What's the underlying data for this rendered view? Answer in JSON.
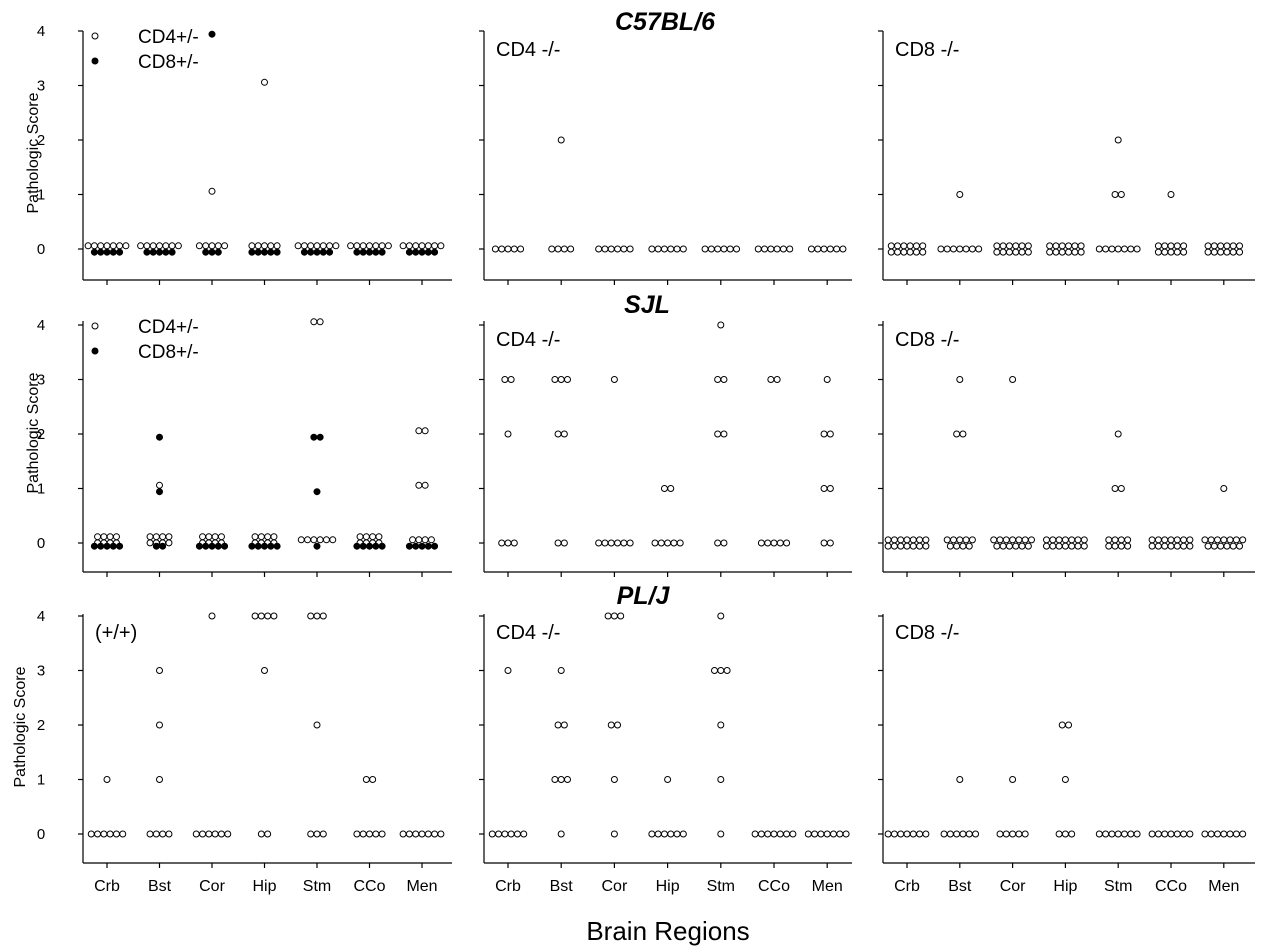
{
  "figure": {
    "x_axis_title": "Brain Regions",
    "y_axis_title": "Pathologic Score",
    "categories": [
      "Crb",
      "Bst",
      "Cor",
      "Hip",
      "Stm",
      "CCo",
      "Men"
    ],
    "y_ticks": [
      "0",
      "1",
      "2",
      "3",
      "4"
    ],
    "legend": [
      {
        "label": "CD4+/-",
        "marker": "open-circle"
      },
      {
        "label": "CD8+/-",
        "marker": "filled-circle"
      }
    ],
    "colors": {
      "ink": "#000000",
      "background": "#ffffff"
    }
  },
  "chart_data": [
    {
      "type": "scatter",
      "strain": "C57BL/6",
      "panel_label": "",
      "legend": true,
      "ylabel": "Pathologic Score",
      "xlabel": "",
      "ylim": [
        0,
        4
      ],
      "categories": [
        "Crb",
        "Bst",
        "Cor",
        "Hip",
        "Stm",
        "CCo",
        "Men"
      ],
      "series": [
        {
          "name": "CD4+/-",
          "marker": "open",
          "values": [
            [
              0,
              0,
              0,
              0,
              0,
              0,
              0
            ],
            [
              0,
              0,
              0,
              0,
              0,
              0,
              0
            ],
            [
              1,
              0,
              0,
              0,
              0,
              0
            ],
            [
              3,
              0,
              0,
              0,
              0,
              0
            ],
            [
              0,
              0,
              0,
              0,
              0,
              0,
              0
            ],
            [
              0,
              0,
              0,
              0,
              0,
              0,
              0
            ],
            [
              0,
              0,
              0,
              0,
              0,
              0,
              0
            ]
          ]
        },
        {
          "name": "CD8+/-",
          "marker": "filled",
          "values": [
            [
              0,
              0,
              0,
              0,
              0
            ],
            [
              0,
              0,
              0,
              0,
              0
            ],
            [
              4,
              0,
              0,
              0
            ],
            [
              0,
              0,
              0,
              0,
              0
            ],
            [
              0,
              0,
              0,
              0,
              0
            ],
            [
              0,
              0,
              0,
              0,
              0
            ],
            [
              0,
              0,
              0,
              0,
              0
            ]
          ]
        }
      ]
    },
    {
      "type": "scatter",
      "strain": "",
      "panel_label": "CD4 -/-",
      "legend": false,
      "ylabel": "",
      "xlabel": "",
      "ylim": [
        0,
        4
      ],
      "categories": [
        "Crb",
        "Bst",
        "Cor",
        "Hip",
        "Stm",
        "CCo",
        "Men"
      ],
      "series": [
        {
          "name": "CD4 -/-",
          "marker": "open",
          "values": [
            [
              0,
              0,
              0,
              0,
              0
            ],
            [
              2,
              0,
              0,
              0,
              0
            ],
            [
              0,
              0,
              0,
              0,
              0,
              0
            ],
            [
              0,
              0,
              0,
              0,
              0,
              0
            ],
            [
              0,
              0,
              0,
              0,
              0,
              0
            ],
            [
              0,
              0,
              0,
              0,
              0,
              0
            ],
            [
              0,
              0,
              0,
              0,
              0,
              0
            ]
          ]
        }
      ]
    },
    {
      "type": "scatter",
      "strain": "",
      "panel_label": "CD8 -/-",
      "legend": false,
      "ylabel": "",
      "xlabel": "",
      "ylim": [
        0,
        4
      ],
      "categories": [
        "Crb",
        "Bst",
        "Cor",
        "Hip",
        "Stm",
        "CCo",
        "Men"
      ],
      "series": [
        {
          "name": "CD8 -/-",
          "marker": "open",
          "values": [
            [
              0,
              0,
              0,
              0,
              0,
              0,
              0,
              0,
              0,
              0,
              0,
              0
            ],
            [
              1,
              0,
              0,
              0,
              0,
              0,
              0,
              0
            ],
            [
              0,
              0,
              0,
              0,
              0,
              0,
              0,
              0,
              0,
              0,
              0,
              0
            ],
            [
              0,
              0,
              0,
              0,
              0,
              0,
              0,
              0,
              0,
              0,
              0,
              0
            ],
            [
              2,
              1,
              1,
              0,
              0,
              0,
              0,
              0,
              0,
              0
            ],
            [
              1,
              0,
              0,
              0,
              0,
              0,
              0,
              0,
              0,
              0,
              0
            ],
            [
              0,
              0,
              0,
              0,
              0,
              0,
              0,
              0,
              0,
              0,
              0,
              0
            ]
          ]
        }
      ]
    },
    {
      "type": "scatter",
      "strain": "SJL",
      "panel_label": "",
      "legend": true,
      "ylabel": "Pathologic Score",
      "xlabel": "",
      "ylim": [
        0,
        4
      ],
      "categories": [
        "Crb",
        "Bst",
        "Cor",
        "Hip",
        "Stm",
        "CCo",
        "Men"
      ],
      "series": [
        {
          "name": "CD4+/-",
          "marker": "open",
          "values": [
            [
              0,
              0,
              0,
              0,
              0,
              0,
              0,
              0
            ],
            [
              1,
              0,
              0,
              0,
              0,
              0,
              0,
              0,
              0
            ],
            [
              0,
              0,
              0,
              0,
              0,
              0,
              0,
              0
            ],
            [
              0,
              0,
              0,
              0,
              0,
              0,
              0,
              0
            ],
            [
              4,
              4,
              0,
              0,
              0,
              0,
              0,
              0
            ],
            [
              0,
              0,
              0,
              0,
              0,
              0,
              0,
              0
            ],
            [
              2,
              2,
              1,
              1,
              0,
              0,
              0,
              0
            ]
          ]
        },
        {
          "name": "CD8+/-",
          "marker": "filled",
          "values": [
            [
              0,
              0,
              0,
              0,
              0
            ],
            [
              2,
              1,
              0,
              0
            ],
            [
              0,
              0,
              0,
              0,
              0
            ],
            [
              0,
              0,
              0,
              0,
              0
            ],
            [
              2,
              2,
              1,
              0
            ],
            [
              0,
              0,
              0,
              0,
              0
            ],
            [
              0,
              0,
              0,
              0,
              0
            ]
          ]
        }
      ]
    },
    {
      "type": "scatter",
      "strain": "",
      "panel_label": "CD4 -/-",
      "legend": false,
      "ylabel": "",
      "xlabel": "",
      "ylim": [
        0,
        4
      ],
      "categories": [
        "Crb",
        "Bst",
        "Cor",
        "Hip",
        "Stm",
        "CCo",
        "Men"
      ],
      "series": [
        {
          "name": "CD4 -/-",
          "marker": "open",
          "values": [
            [
              3,
              3,
              2,
              0,
              0,
              0
            ],
            [
              3,
              3,
              3,
              2,
              2,
              0,
              0
            ],
            [
              3,
              0,
              0,
              0,
              0,
              0,
              0
            ],
            [
              1,
              1,
              0,
              0,
              0,
              0,
              0
            ],
            [
              4,
              3,
              3,
              2,
              2,
              0,
              0
            ],
            [
              3,
              3,
              0,
              0,
              0,
              0,
              0
            ],
            [
              3,
              2,
              2,
              1,
              1,
              0,
              0
            ]
          ]
        }
      ]
    },
    {
      "type": "scatter",
      "strain": "",
      "panel_label": "CD8 -/-",
      "legend": false,
      "ylabel": "",
      "xlabel": "",
      "ylim": [
        0,
        4
      ],
      "categories": [
        "Crb",
        "Bst",
        "Cor",
        "Hip",
        "Stm",
        "CCo",
        "Men"
      ],
      "series": [
        {
          "name": "CD8 -/-",
          "marker": "open",
          "values": [
            [
              0,
              0,
              0,
              0,
              0,
              0,
              0,
              0,
              0,
              0,
              0,
              0,
              0,
              0
            ],
            [
              3,
              2,
              2,
              0,
              0,
              0,
              0,
              0,
              0,
              0,
              0,
              0
            ],
            [
              3,
              0,
              0,
              0,
              0,
              0,
              0,
              0,
              0,
              0,
              0,
              0,
              0,
              0
            ],
            [
              0,
              0,
              0,
              0,
              0,
              0,
              0,
              0,
              0,
              0,
              0,
              0,
              0,
              0
            ],
            [
              2,
              1,
              1,
              0,
              0,
              0,
              0,
              0,
              0,
              0,
              0
            ],
            [
              0,
              0,
              0,
              0,
              0,
              0,
              0,
              0,
              0,
              0,
              0,
              0,
              0,
              0
            ],
            [
              1,
              0,
              0,
              0,
              0,
              0,
              0,
              0,
              0,
              0,
              0,
              0,
              0,
              0
            ]
          ]
        }
      ]
    },
    {
      "type": "scatter",
      "strain": "PL/J",
      "panel_label": "(+/+)",
      "legend": false,
      "ylabel": "Pathologic Score",
      "xlabel": "",
      "ylim": [
        0,
        4
      ],
      "categories": [
        "Crb",
        "Bst",
        "Cor",
        "Hip",
        "Stm",
        "CCo",
        "Men"
      ],
      "series": [
        {
          "name": "(+/+)",
          "marker": "open",
          "values": [
            [
              1,
              0,
              0,
              0,
              0,
              0,
              0
            ],
            [
              3,
              2,
              1,
              0,
              0,
              0,
              0
            ],
            [
              4,
              0,
              0,
              0,
              0,
              0,
              0
            ],
            [
              4,
              4,
              4,
              4,
              3,
              0,
              0
            ],
            [
              4,
              4,
              4,
              2,
              0,
              0,
              0
            ],
            [
              1,
              1,
              0,
              0,
              0,
              0,
              0
            ],
            [
              0,
              0,
              0,
              0,
              0,
              0,
              0
            ]
          ]
        }
      ]
    },
    {
      "type": "scatter",
      "strain": "",
      "panel_label": "CD4 -/-",
      "legend": false,
      "ylabel": "",
      "xlabel": "",
      "ylim": [
        0,
        4
      ],
      "categories": [
        "Crb",
        "Bst",
        "Cor",
        "Hip",
        "Stm",
        "CCo",
        "Men"
      ],
      "series": [
        {
          "name": "CD4 -/-",
          "marker": "open",
          "values": [
            [
              3,
              0,
              0,
              0,
              0,
              0,
              0
            ],
            [
              3,
              2,
              2,
              1,
              1,
              1,
              0
            ],
            [
              4,
              4,
              4,
              2,
              2,
              1,
              0
            ],
            [
              1,
              0,
              0,
              0,
              0,
              0,
              0
            ],
            [
              4,
              3,
              3,
              3,
              2,
              1,
              0
            ],
            [
              0,
              0,
              0,
              0,
              0,
              0,
              0
            ],
            [
              0,
              0,
              0,
              0,
              0,
              0,
              0
            ]
          ]
        }
      ]
    },
    {
      "type": "scatter",
      "strain": "",
      "panel_label": "CD8 -/-",
      "legend": false,
      "ylabel": "",
      "xlabel": "",
      "ylim": [
        0,
        4
      ],
      "categories": [
        "Crb",
        "Bst",
        "Cor",
        "Hip",
        "Stm",
        "CCo",
        "Men"
      ],
      "series": [
        {
          "name": "CD8 -/-",
          "marker": "open",
          "values": [
            [
              0,
              0,
              0,
              0,
              0,
              0,
              0
            ],
            [
              1,
              0,
              0,
              0,
              0,
              0,
              0
            ],
            [
              1,
              0,
              0,
              0,
              0,
              0
            ],
            [
              2,
              2,
              1,
              0,
              0,
              0
            ],
            [
              0,
              0,
              0,
              0,
              0,
              0,
              0
            ],
            [
              0,
              0,
              0,
              0,
              0,
              0,
              0
            ],
            [
              0,
              0,
              0,
              0,
              0,
              0,
              0
            ]
          ]
        }
      ]
    }
  ]
}
